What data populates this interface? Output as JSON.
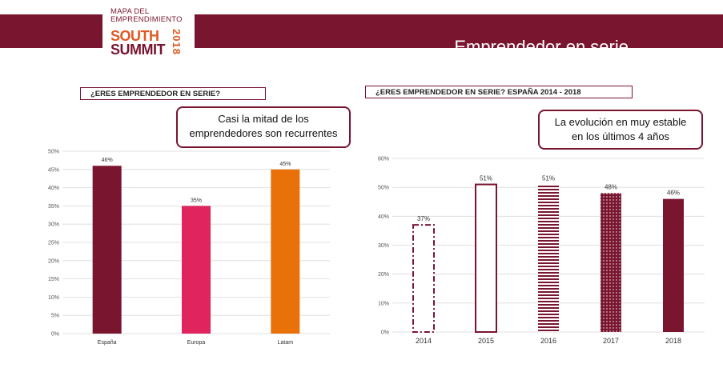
{
  "header": {
    "logo_line1": "MAPA DEL",
    "logo_line2": "EMPRENDIMIENTO",
    "logo_south": "SOUTH",
    "logo_summit": "SUMMIT",
    "logo_year": "2018",
    "title": "Emprendedor en serie",
    "bar_color": "#7a1530"
  },
  "left_panel": {
    "title": "¿ERES EMPRENDEDOR EN SERIE?",
    "callout_line1": "Casi la mitad de los",
    "callout_line2": "emprendedores son recurrentes"
  },
  "right_panel": {
    "title": "¿ERES EMPRENDEDOR EN SERIE? ESPAÑA 2014 - 2018",
    "callout_line1": "La evolución en muy estable",
    "callout_line2": "en los últimos 4 años"
  },
  "chart_data": [
    {
      "type": "bar",
      "categories": [
        "España",
        "Europa",
        "Latam"
      ],
      "values": [
        46,
        35,
        45
      ],
      "value_labels": [
        "46%",
        "35%",
        "45%"
      ],
      "colors": [
        "#7a1530",
        "#e0245e",
        "#e8710a"
      ],
      "ylim": [
        0,
        50
      ],
      "yticks": [
        "0%",
        "5%",
        "10%",
        "15%",
        "20%",
        "25%",
        "30%",
        "35%",
        "40%",
        "45%",
        "50%"
      ],
      "grid": true
    },
    {
      "type": "bar",
      "categories": [
        "2014",
        "2015",
        "2016",
        "2017",
        "2018"
      ],
      "values": [
        37,
        51,
        51,
        48,
        46
      ],
      "value_labels": [
        "37%",
        "51%",
        "51%",
        "48%",
        "46%"
      ],
      "color": "#7a1530",
      "styles": [
        "dashdot-outline",
        "outline",
        "horizontal-stripes",
        "dotted",
        "solid"
      ],
      "ylim": [
        0,
        60
      ],
      "yticks": [
        "0%",
        "10%",
        "20%",
        "30%",
        "40%",
        "50%",
        "60%"
      ],
      "grid": true
    }
  ]
}
